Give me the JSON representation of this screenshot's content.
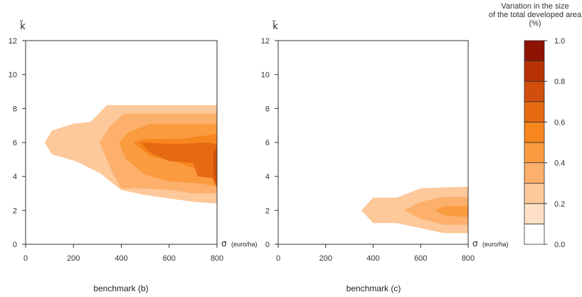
{
  "chart_data": [
    {
      "type": "contour",
      "caption": "benchmark (b)",
      "xlabel_symbol": "σ",
      "xlabel_unit": "(euro/ha)",
      "ylabel": "k̃",
      "xlim": [
        0,
        800
      ],
      "ylim": [
        0,
        12
      ],
      "x_ticks": [
        "0",
        "200",
        "400",
        "600",
        "800"
      ],
      "y_ticks": [
        "0",
        "2",
        "4",
        "6",
        "8",
        "10",
        "12"
      ],
      "regions": [
        {
          "level": 0.2,
          "points": [
            [
              80,
              6
            ],
            [
              110,
              6.7
            ],
            [
              200,
              7.1
            ],
            [
              270,
              7.2
            ],
            [
              340,
              8.2
            ],
            [
              800,
              8.2
            ],
            [
              800,
              2.4
            ],
            [
              700,
              2.5
            ],
            [
              600,
              2.7
            ],
            [
              500,
              2.9
            ],
            [
              400,
              3.2
            ],
            [
              310,
              4.2
            ],
            [
              210,
              4.9
            ],
            [
              110,
              5.3
            ]
          ]
        },
        {
          "level": 0.3,
          "points": [
            [
              310,
              6
            ],
            [
              350,
              6.9
            ],
            [
              410,
              7.7
            ],
            [
              800,
              7.7
            ],
            [
              800,
              3.0
            ],
            [
              700,
              3.0
            ],
            [
              600,
              3.2
            ],
            [
              500,
              3.3
            ],
            [
              400,
              3.3
            ],
            [
              360,
              4.3
            ]
          ]
        },
        {
          "level": 0.4,
          "points": [
            [
              390,
              6
            ],
            [
              430,
              6.6
            ],
            [
              520,
              7.1
            ],
            [
              800,
              7.1
            ],
            [
              800,
              3.4
            ],
            [
              720,
              3.6
            ],
            [
              600,
              3.7
            ],
            [
              500,
              4.1
            ],
            [
              420,
              5.0
            ]
          ]
        },
        {
          "level": 0.5,
          "points": [
            [
              450,
              6
            ],
            [
              500,
              6.2
            ],
            [
              640,
              6.2
            ],
            [
              800,
              6.5
            ],
            [
              800,
              3.8
            ],
            [
              740,
              4.2
            ],
            [
              700,
              4.5
            ],
            [
              620,
              4.9
            ],
            [
              520,
              5.2
            ]
          ]
        },
        {
          "level": 0.6,
          "points": [
            [
              480,
              6
            ],
            [
              620,
              5.9
            ],
            [
              760,
              6.0
            ],
            [
              800,
              5.9
            ],
            [
              800,
              3.3
            ],
            [
              780,
              3.9
            ],
            [
              720,
              4.0
            ],
            [
              700,
              4.8
            ],
            [
              600,
              4.9
            ],
            [
              520,
              5.4
            ]
          ]
        },
        {
          "level": 0.7,
          "points": [
            [
              785,
              5.4
            ],
            [
              800,
              5.8
            ],
            [
              800,
              3.3
            ],
            [
              785,
              4.2
            ]
          ]
        }
      ]
    },
    {
      "type": "contour",
      "caption": "benchmark (c)",
      "xlabel_symbol": "σ",
      "xlabel_unit": "(euro/ha)",
      "ylabel": "k̃",
      "xlim": [
        0,
        800
      ],
      "ylim": [
        0,
        12
      ],
      "x_ticks": [
        "0",
        "200",
        "400",
        "600",
        "800"
      ],
      "y_ticks": [
        "0",
        "2",
        "4",
        "6",
        "8",
        "10",
        "12"
      ],
      "regions": [
        {
          "level": 0.2,
          "points": [
            [
              350,
              2
            ],
            [
              400,
              2.75
            ],
            [
              500,
              2.75
            ],
            [
              600,
              3.3
            ],
            [
              800,
              3.4
            ],
            [
              800,
              0.65
            ],
            [
              700,
              0.65
            ],
            [
              600,
              0.95
            ],
            [
              500,
              1.25
            ],
            [
              400,
              1.25
            ]
          ]
        },
        {
          "level": 0.3,
          "points": [
            [
              530,
              2
            ],
            [
              600,
              2.5
            ],
            [
              700,
              2.8
            ],
            [
              800,
              2.8
            ],
            [
              800,
              1.15
            ],
            [
              700,
              1.15
            ],
            [
              600,
              1.5
            ]
          ]
        },
        {
          "level": 0.4,
          "points": [
            [
              660,
              2
            ],
            [
              700,
              2.25
            ],
            [
              800,
              2.25
            ],
            [
              800,
              1.6
            ],
            [
              700,
              1.7
            ]
          ]
        }
      ]
    }
  ],
  "legend": {
    "title_lines": [
      "Variation in the size",
      "of the total developed area",
      "(%)"
    ],
    "ticks": [
      "0.0",
      "0.2",
      "0.4",
      "0.6",
      "0.8",
      "1.0"
    ],
    "min": 0.0,
    "max": 1.0,
    "bins": [
      {
        "from": 0.0,
        "to": 0.1,
        "color": "#ffffff"
      },
      {
        "from": 0.1,
        "to": 0.2,
        "color": "#fde0c6"
      },
      {
        "from": 0.2,
        "to": 0.3,
        "color": "#fdc89a"
      },
      {
        "from": 0.3,
        "to": 0.4,
        "color": "#fcb06c"
      },
      {
        "from": 0.4,
        "to": 0.5,
        "color": "#fb9b3f"
      },
      {
        "from": 0.5,
        "to": 0.6,
        "color": "#f7861e"
      },
      {
        "from": 0.6,
        "to": 0.7,
        "color": "#e66a12"
      },
      {
        "from": 0.7,
        "to": 0.8,
        "color": "#d14e0b"
      },
      {
        "from": 0.8,
        "to": 0.9,
        "color": "#b73305"
      },
      {
        "from": 0.9,
        "to": 1.0,
        "color": "#8f1302"
      }
    ]
  }
}
